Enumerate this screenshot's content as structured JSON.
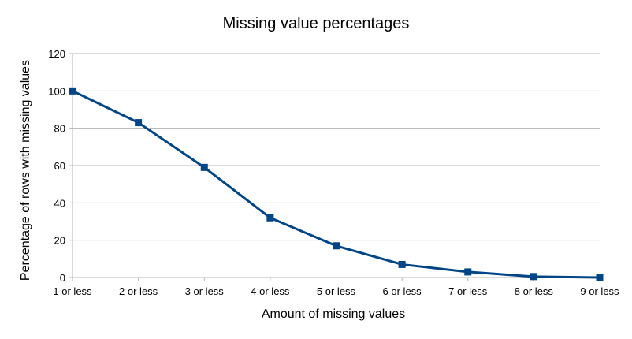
{
  "chart_data": {
    "type": "line",
    "title": "Missing value percentages",
    "xlabel": "Amount of missing values",
    "ylabel": "Percentage of rows with missing values",
    "categories": [
      "1 or less",
      "2 or less",
      "3 or less",
      "4 or less",
      "5 or less",
      "6 or less",
      "7 or less",
      "8 or less",
      "9 or less"
    ],
    "series": [
      {
        "values": [
          100,
          83,
          59,
          32,
          17,
          7,
          3,
          0.5,
          0
        ],
        "color": "#004586",
        "marker": "square"
      }
    ],
    "ylim": [
      0,
      120
    ],
    "yticks": [
      0,
      20,
      40,
      60,
      80,
      100,
      120
    ],
    "grid": true,
    "legend": "none"
  }
}
